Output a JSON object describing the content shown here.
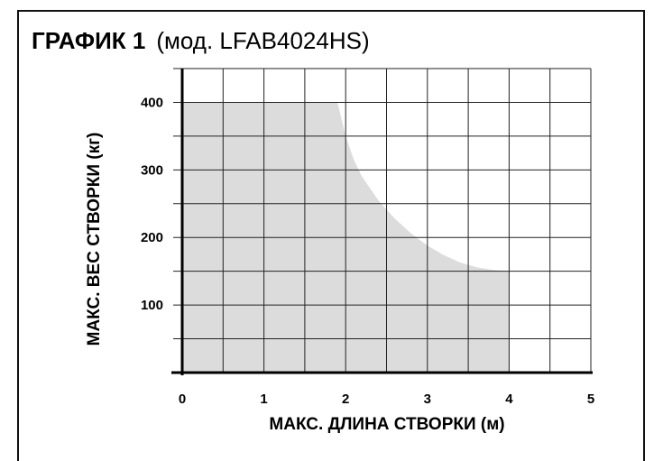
{
  "title": "ГРАФИК 1",
  "subtitle": "(мод. LFAB4024HS)",
  "chart_data": {
    "type": "area",
    "xlabel": "МАКС. ДЛИНА СТВОРКИ (м)",
    "ylabel": "МАКС. ВЕС СТВОРКИ (кг)",
    "xlim": [
      0,
      5
    ],
    "ylim": [
      0,
      400
    ],
    "x_ticks": [
      "0",
      "1",
      "2",
      "3",
      "4",
      "5"
    ],
    "y_ticks": [
      "100",
      "200",
      "300",
      "400"
    ],
    "grid": true,
    "fill_color": "#dcdcdc",
    "series": [
      {
        "x": [
          0,
          1.9,
          2.0,
          2.1,
          2.2,
          2.4,
          2.6,
          2.8,
          3.0,
          3.2,
          3.4,
          3.6,
          3.8,
          4.0,
          4.0
        ],
        "values": [
          400,
          400,
          350,
          315,
          290,
          255,
          228,
          206,
          188,
          174,
          163,
          156,
          152,
          150,
          0
        ]
      }
    ]
  }
}
